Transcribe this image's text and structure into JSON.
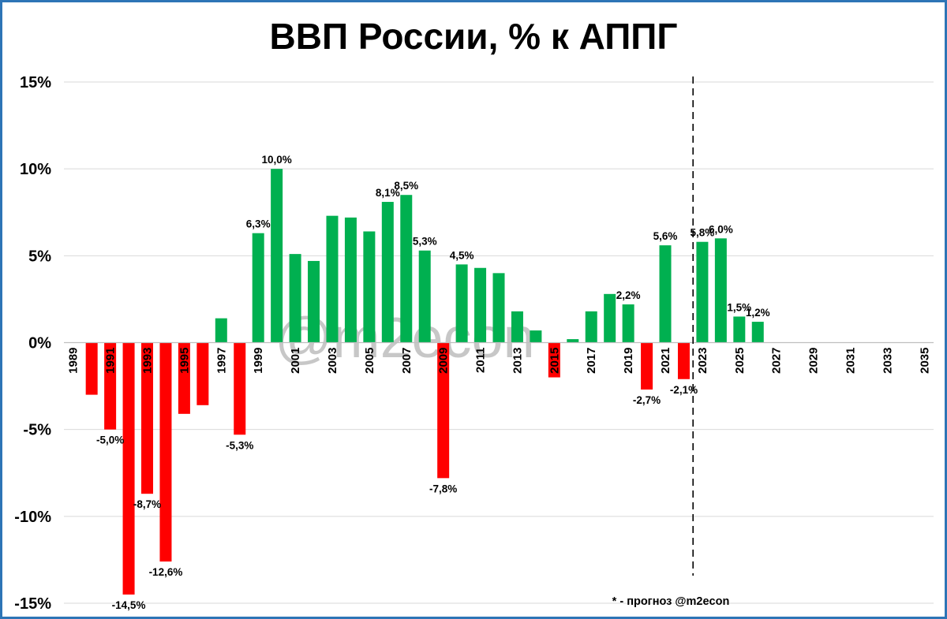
{
  "chart_data": {
    "type": "bar",
    "title": "ВВП России, % к АППГ",
    "xlabel": "",
    "ylabel": "",
    "ylim": [
      -15,
      15
    ],
    "y_ticks": [
      15,
      10,
      5,
      0,
      -5,
      -10,
      -15
    ],
    "y_tick_labels": [
      "15%",
      "10%",
      "5%",
      "0%",
      "-5%",
      "-10%",
      "-15%"
    ],
    "x_tick_labels": [
      "1989",
      "1991",
      "1993",
      "1995",
      "1997",
      "1999",
      "2001",
      "2003",
      "2005",
      "2007",
      "2009",
      "2011",
      "2013",
      "2015",
      "2017",
      "2019",
      "2021",
      "2023",
      "2025",
      "2027",
      "2029",
      "2031",
      "2033",
      "2035"
    ],
    "x_range": [
      1989,
      2036
    ],
    "grid": true,
    "forecast_divider_year": 2022.5,
    "colors": {
      "positive": "#00b050",
      "negative": "#ff0000",
      "grid": "#d9d9d9",
      "frame": "#2e75b6"
    },
    "years": [
      1990,
      1991,
      1992,
      1993,
      1994,
      1995,
      1996,
      1997,
      1998,
      1999,
      2000,
      2001,
      2002,
      2003,
      2004,
      2005,
      2006,
      2007,
      2008,
      2009,
      2010,
      2011,
      2012,
      2013,
      2014,
      2015,
      2016,
      2017,
      2018,
      2019,
      2020,
      2021,
      2022,
      2023,
      2024,
      2025,
      2026
    ],
    "values": [
      -3.0,
      -5.0,
      -14.5,
      -8.7,
      -12.6,
      -4.1,
      -3.6,
      1.4,
      -5.3,
      6.3,
      10.0,
      5.1,
      4.7,
      7.3,
      7.2,
      6.4,
      8.1,
      8.5,
      5.3,
      -7.8,
      4.5,
      4.3,
      4.0,
      1.8,
      0.7,
      -2.0,
      0.2,
      1.8,
      2.8,
      2.2,
      -2.7,
      5.6,
      -2.1,
      5.8,
      6.0,
      1.5,
      1.2
    ],
    "data_labels": [
      {
        "year": 1991,
        "text": "-5,0%"
      },
      {
        "year": 1992,
        "text": "-14,5%"
      },
      {
        "year": 1993,
        "text": "-8,7%"
      },
      {
        "year": 1994,
        "text": "-12,6%"
      },
      {
        "year": 1998,
        "text": "-5,3%"
      },
      {
        "year": 1999,
        "text": "6,3%"
      },
      {
        "year": 2000,
        "text": "10,0%"
      },
      {
        "year": 2006,
        "text": "8,1%"
      },
      {
        "year": 2007,
        "text": "8,5%"
      },
      {
        "year": 2008,
        "text": "5,3%"
      },
      {
        "year": 2009,
        "text": "-7,8%"
      },
      {
        "year": 2010,
        "text": "4,5%"
      },
      {
        "year": 2019,
        "text": "2,2%"
      },
      {
        "year": 2020,
        "text": "-2,7%"
      },
      {
        "year": 2021,
        "text": "5,6%"
      },
      {
        "year": 2022,
        "text": "-2,1%"
      },
      {
        "year": 2023,
        "text": "5,8%"
      },
      {
        "year": 2024,
        "text": "6,0%"
      },
      {
        "year": 2025,
        "text": "1,5%"
      },
      {
        "year": 2026,
        "text": "1,2%"
      }
    ],
    "watermark": "@m2econ",
    "footnote": "* - прогноз @m2econ"
  }
}
